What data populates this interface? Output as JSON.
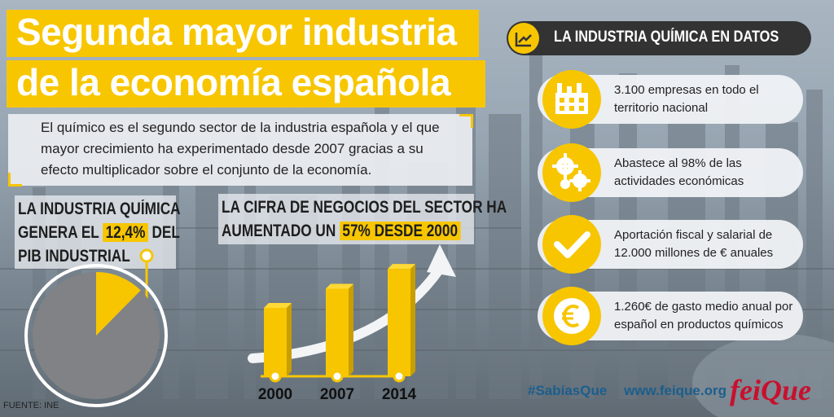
{
  "title": {
    "line1": "Segunda mayor industria",
    "line2": "de la economía española"
  },
  "intro": "El químico es el segundo sector de la industria española y el que mayor crecimiento ha experimentado desde 2007 gracias a su efecto multiplicador sobre el conjunto de la economía.",
  "pib": {
    "line1": "LA INDUSTRIA QUÍMICA",
    "line2_pre": "GENERA  EL ",
    "highlight": "12,4%",
    "line2_post": " DEL",
    "line3": "PIB INDUSTRIAL",
    "share_value": 0.124
  },
  "growth": {
    "line1": "LA CIFRA DE NEGOCIOS DEL SECTOR HA",
    "line2_pre": "AUMENTADO UN ",
    "highlight": "57% DESDE 2000",
    "bars": [
      {
        "year": "2000",
        "relative": 1.0
      },
      {
        "year": "2007",
        "relative": 1.28
      },
      {
        "year": "2014",
        "relative": 1.57
      }
    ]
  },
  "panel": {
    "header": "LA INDUSTRIA QUÍMICA EN DATOS",
    "facts": [
      {
        "icon": "factory-icon",
        "text": "3.100 empresas en todo el territorio nacional"
      },
      {
        "icon": "gears-icon",
        "text": "Abastece al 98% de las actividades económicas"
      },
      {
        "icon": "checkmark-icon",
        "text": "Aportación fiscal y salarial de 12.000 millones de € anuales"
      },
      {
        "icon": "euro-icon",
        "text": "1.260€ de gasto medio anual por español en productos químicos"
      }
    ]
  },
  "footer": {
    "hashtag": "#SabíasQue",
    "website": "www.feique.org",
    "logo_text": "feiQue"
  },
  "source": "FUENTE: INE",
  "colors": {
    "accent": "#f7c600",
    "dark": "#333333",
    "link": "#1b5e8c",
    "logo": "#c8102e"
  }
}
